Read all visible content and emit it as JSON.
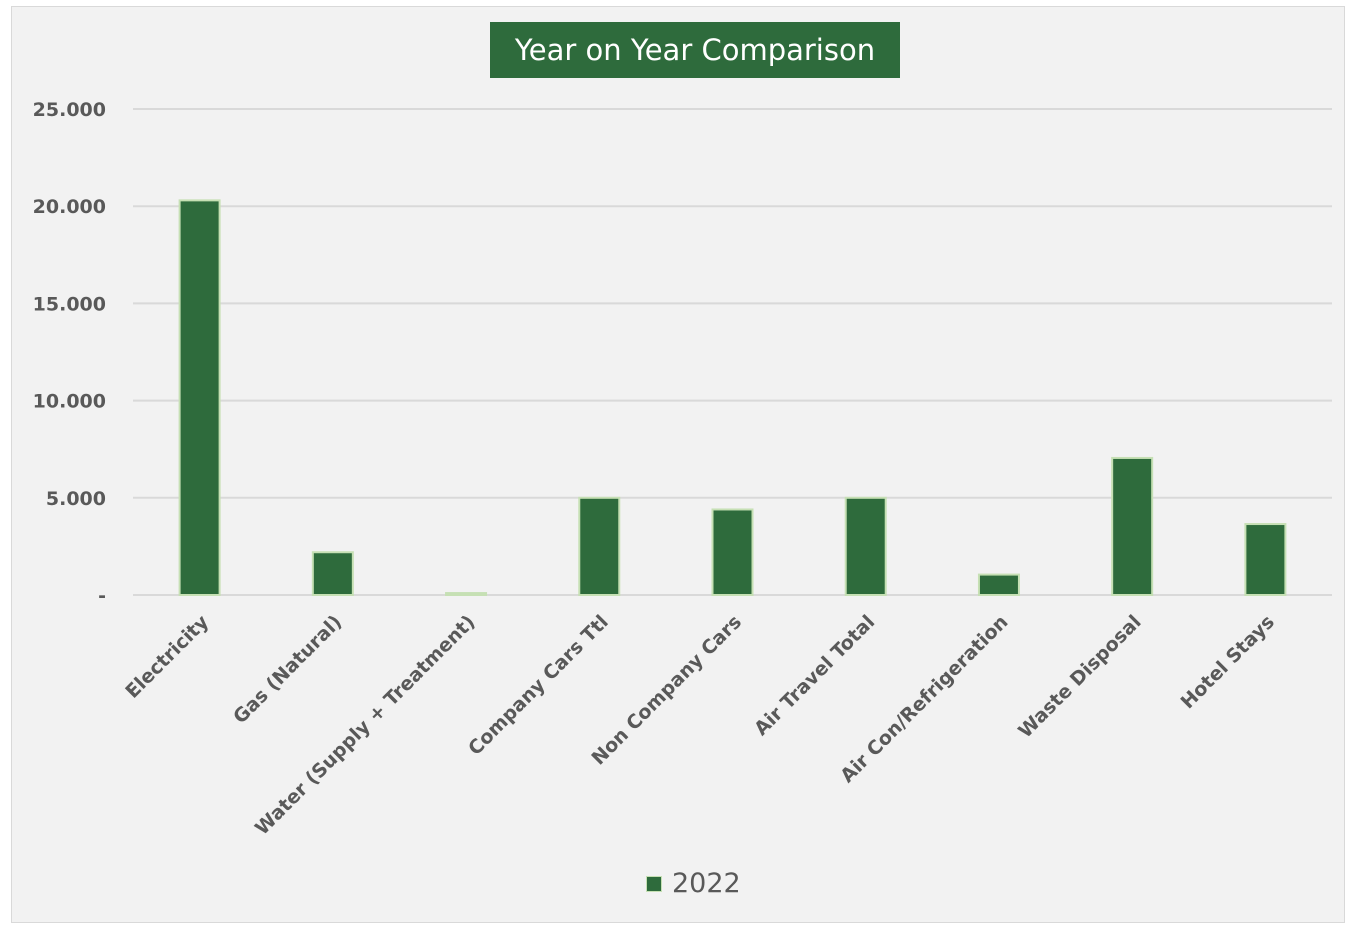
{
  "chart_data": {
    "type": "bar",
    "title": "Year on Year Comparison",
    "categories": [
      "Electricity",
      "Gas (Natural)",
      "Water (Supply + Treatment)",
      "Company Cars Ttl",
      "Non Company Cars",
      "Air Travel Total",
      "Air Con/Refrigeration",
      "Waste Disposal",
      "Hotel Stays"
    ],
    "series": [
      {
        "name": "2022",
        "values": [
          20300,
          2200,
          100,
          5000,
          4400,
          5000,
          1050,
          7050,
          3650
        ]
      }
    ],
    "ylim": [
      0,
      25000
    ],
    "yticks": [
      0,
      5000,
      10000,
      15000,
      20000,
      25000
    ],
    "ytick_labels": [
      "-",
      "5.000",
      "10.000",
      "15.000",
      "20.000",
      "25.000"
    ],
    "xlabel": "",
    "ylabel": "",
    "grid": true,
    "legend_position": "bottom",
    "colors": {
      "bar": "#2e6b3c",
      "bar_outline": "#c6e0b4",
      "grid": "#d9d9d9",
      "background": "#f2f2f2",
      "tick_text": "#595959"
    }
  }
}
